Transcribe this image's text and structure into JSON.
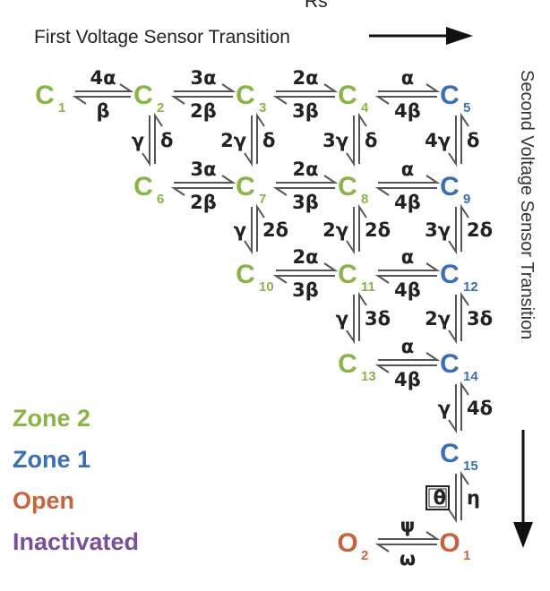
{
  "top_cut_label": "Rs",
  "titles": {
    "horizontal": "First Voltage Sensor Transition",
    "vertical": "Second Voltage Sensor Transition"
  },
  "colors": {
    "zone2": "#8ab447",
    "zone1": "#3c6eb4",
    "open": "#c8643c",
    "inactivated": "#7a4f9a",
    "text": "#222222"
  },
  "legend": [
    {
      "label": "Zone 2",
      "zone": "zone2"
    },
    {
      "label": "Zone 1",
      "zone": "zone1"
    },
    {
      "label": "Open",
      "zone": "open"
    },
    {
      "label": "Inactivated",
      "zone": "inactivated"
    }
  ],
  "states": [
    {
      "id": "C1",
      "main": "C",
      "sub": "1",
      "zone": "zone2"
    },
    {
      "id": "C2",
      "main": "C",
      "sub": "2",
      "zone": "zone2"
    },
    {
      "id": "C3",
      "main": "C",
      "sub": "3",
      "zone": "zone2"
    },
    {
      "id": "C4",
      "main": "C",
      "sub": "4",
      "zone": "zone2"
    },
    {
      "id": "C5",
      "main": "C",
      "sub": "5",
      "zone": "zone1"
    },
    {
      "id": "C6",
      "main": "C",
      "sub": "6",
      "zone": "zone2"
    },
    {
      "id": "C7",
      "main": "C",
      "sub": "7",
      "zone": "zone2"
    },
    {
      "id": "C8",
      "main": "C",
      "sub": "8",
      "zone": "zone2"
    },
    {
      "id": "C9",
      "main": "C",
      "sub": "9",
      "zone": "zone1"
    },
    {
      "id": "C10",
      "main": "C",
      "sub": "10",
      "zone": "zone2"
    },
    {
      "id": "C11",
      "main": "C",
      "sub": "11",
      "zone": "zone2"
    },
    {
      "id": "C12",
      "main": "C",
      "sub": "12",
      "zone": "zone1"
    },
    {
      "id": "C13",
      "main": "C",
      "sub": "13",
      "zone": "zone2"
    },
    {
      "id": "C14",
      "main": "C",
      "sub": "14",
      "zone": "zone1"
    },
    {
      "id": "C15",
      "main": "C",
      "sub": "15",
      "zone": "zone1"
    },
    {
      "id": "O1",
      "main": "O",
      "sub": "1",
      "zone": "open"
    },
    {
      "id": "O2",
      "main": "O",
      "sub": "2",
      "zone": "open"
    }
  ],
  "transitions": [
    {
      "from": "C1",
      "to": "C2",
      "forward": "4α",
      "backward": "β"
    },
    {
      "from": "C2",
      "to": "C3",
      "forward": "3α",
      "backward": "2β"
    },
    {
      "from": "C3",
      "to": "C4",
      "forward": "2α",
      "backward": "3β"
    },
    {
      "from": "C4",
      "to": "C5",
      "forward": "α",
      "backward": "4β"
    },
    {
      "from": "C6",
      "to": "C7",
      "forward": "3α",
      "backward": "2β"
    },
    {
      "from": "C7",
      "to": "C8",
      "forward": "2α",
      "backward": "3β"
    },
    {
      "from": "C8",
      "to": "C9",
      "forward": "α",
      "backward": "4β"
    },
    {
      "from": "C10",
      "to": "C11",
      "forward": "2α",
      "backward": "3β"
    },
    {
      "from": "C11",
      "to": "C12",
      "forward": "α",
      "backward": "4β"
    },
    {
      "from": "C13",
      "to": "C14",
      "forward": "α",
      "backward": "4β"
    },
    {
      "from": "O2",
      "to": "O1",
      "forward": "ψ",
      "backward": "ω"
    },
    {
      "from": "C2",
      "to": "C6",
      "forward": "γ",
      "backward": "δ"
    },
    {
      "from": "C3",
      "to": "C7",
      "forward": "2γ",
      "backward": "δ"
    },
    {
      "from": "C4",
      "to": "C8",
      "forward": "3γ",
      "backward": "δ"
    },
    {
      "from": "C5",
      "to": "C9",
      "forward": "4γ",
      "backward": "δ"
    },
    {
      "from": "C7",
      "to": "C10",
      "forward": "γ",
      "backward": "2δ"
    },
    {
      "from": "C8",
      "to": "C11",
      "forward": "2γ",
      "backward": "2δ"
    },
    {
      "from": "C9",
      "to": "C12",
      "forward": "3γ",
      "backward": "2δ"
    },
    {
      "from": "C11",
      "to": "C13",
      "forward": "γ",
      "backward": "3δ"
    },
    {
      "from": "C12",
      "to": "C14",
      "forward": "2γ",
      "backward": "3δ"
    },
    {
      "from": "C14",
      "to": "C15",
      "forward": "γ",
      "backward": "4δ"
    },
    {
      "from": "C15",
      "to": "O1",
      "forward": "θ",
      "backward": "η",
      "forward_boxed": true
    }
  ]
}
